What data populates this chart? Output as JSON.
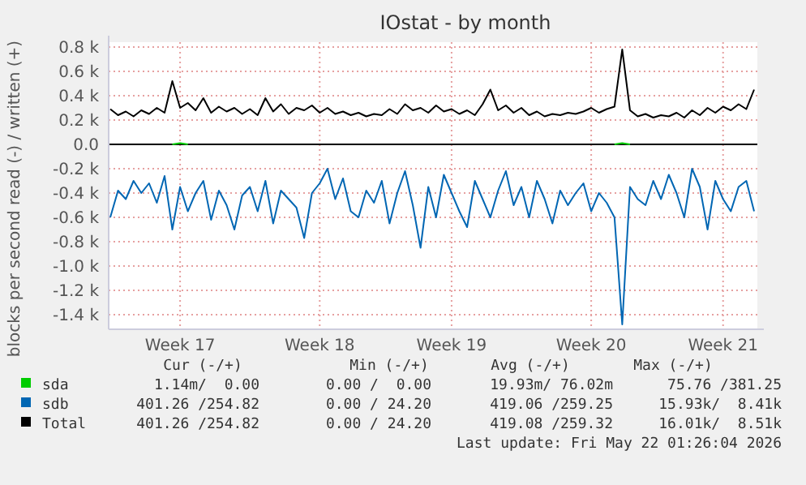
{
  "chart_data": {
    "type": "line",
    "title": "IOstat - by month",
    "ylabel": "blocks per second read (-) / written (+)",
    "categories": [
      null,
      null,
      null,
      null,
      null,
      null,
      null,
      null,
      null,
      "Week 17",
      null,
      null,
      null,
      null,
      null,
      null,
      null,
      null,
      null,
      null,
      null,
      null,
      null,
      null,
      null,
      null,
      null,
      "Week 18",
      null,
      null,
      null,
      null,
      null,
      null,
      null,
      null,
      null,
      null,
      null,
      null,
      null,
      null,
      null,
      null,
      "Week 19",
      null,
      null,
      null,
      null,
      null,
      null,
      null,
      null,
      null,
      null,
      null,
      null,
      null,
      null,
      null,
      null,
      null,
      "Week 20",
      null,
      null,
      null,
      null,
      null,
      null,
      null,
      null,
      null,
      null,
      null,
      null,
      null,
      null,
      null,
      null,
      "Week 21",
      null,
      null,
      null,
      null
    ],
    "ylim": [
      -1520,
      840
    ],
    "yticks": [
      {
        "value": 800,
        "label": "0.8 k"
      },
      {
        "value": 600,
        "label": "0.6 k"
      },
      {
        "value": 400,
        "label": "0.4 k"
      },
      {
        "value": 200,
        "label": "0.2 k"
      },
      {
        "value": 0,
        "label": "0.0"
      },
      {
        "value": -200,
        "label": "-0.2 k"
      },
      {
        "value": -400,
        "label": "-0.4 k"
      },
      {
        "value": -600,
        "label": "-0.6 k"
      },
      {
        "value": -800,
        "label": "-0.8 k"
      },
      {
        "value": -1000,
        "label": "-1.0 k"
      },
      {
        "value": -1200,
        "label": "-1.2 k"
      },
      {
        "value": -1400,
        "label": "-1.4 k"
      }
    ],
    "grid": true,
    "legend": "bottom",
    "ref_lines": [
      {
        "axis": "y",
        "value": 0,
        "color": "#000000"
      }
    ],
    "series": [
      {
        "name": "sda",
        "color": "#00cc00",
        "values": [
          null,
          null,
          null,
          null,
          null,
          null,
          null,
          null,
          0,
          10,
          0,
          null,
          null,
          null,
          null,
          null,
          null,
          null,
          null,
          null,
          null,
          null,
          null,
          null,
          null,
          null,
          null,
          null,
          null,
          null,
          null,
          null,
          null,
          null,
          null,
          null,
          null,
          null,
          null,
          null,
          null,
          null,
          null,
          null,
          null,
          null,
          null,
          null,
          null,
          null,
          null,
          null,
          null,
          null,
          null,
          null,
          null,
          null,
          null,
          null,
          null,
          null,
          null,
          null,
          null,
          0,
          10,
          0,
          null,
          null,
          null,
          null,
          null,
          null,
          null,
          null,
          null,
          null,
          null,
          null,
          null,
          null,
          null,
          null
        ]
      },
      {
        "name": "sdb",
        "color": "#0066b3",
        "values": [
          -600,
          -380,
          -450,
          -300,
          -400,
          -320,
          -480,
          -260,
          -700,
          -350,
          -550,
          -400,
          -300,
          -620,
          -380,
          -500,
          -700,
          -420,
          -350,
          -550,
          -300,
          -650,
          -380,
          -450,
          -520,
          -770,
          -400,
          -320,
          -200,
          -450,
          -280,
          -550,
          -600,
          -380,
          -480,
          -300,
          -650,
          -400,
          -220,
          -500,
          -850,
          -350,
          -600,
          -250,
          -400,
          -550,
          -680,
          -300,
          -450,
          -600,
          -380,
          -220,
          -500,
          -350,
          -600,
          -300,
          -450,
          -650,
          -380,
          -500,
          -400,
          -320,
          -550,
          -400,
          -480,
          -600,
          -1480,
          -350,
          -450,
          -500,
          -300,
          -450,
          -250,
          -400,
          -600,
          -200,
          -350,
          -700,
          -300,
          -450,
          -550,
          -350,
          -300,
          -550
        ]
      },
      {
        "name": "Total",
        "color": "#000000",
        "values": [
          290,
          240,
          270,
          230,
          280,
          250,
          300,
          260,
          520,
          300,
          340,
          280,
          380,
          260,
          310,
          270,
          300,
          250,
          290,
          240,
          380,
          270,
          330,
          250,
          300,
          280,
          320,
          260,
          300,
          250,
          270,
          240,
          260,
          230,
          250,
          240,
          290,
          250,
          330,
          280,
          300,
          260,
          320,
          270,
          290,
          250,
          280,
          240,
          330,
          450,
          280,
          320,
          260,
          300,
          240,
          270,
          230,
          250,
          240,
          260,
          250,
          270,
          300,
          260,
          290,
          310,
          780,
          280,
          230,
          250,
          220,
          240,
          230,
          260,
          220,
          280,
          240,
          300,
          260,
          310,
          280,
          330,
          290,
          450
        ]
      }
    ],
    "annotations": [
      "Cur (-/+)",
      "Min (-/+)",
      "Avg (-/+)",
      "Max (-/+)",
      "1.14m/  0.00",
      "0.00 /  0.00",
      "19.93m/ 76.02m",
      "75.76 /381.25",
      "401.26 /254.82",
      "0.00 / 24.20",
      "419.06 /259.25",
      "15.93k/  8.41k",
      "401.26 /254.82",
      "0.00 / 24.20",
      "419.08 /259.32",
      "16.01k/  8.51k",
      "Last update: Fri May 22 01:26:04 2026"
    ]
  }
}
